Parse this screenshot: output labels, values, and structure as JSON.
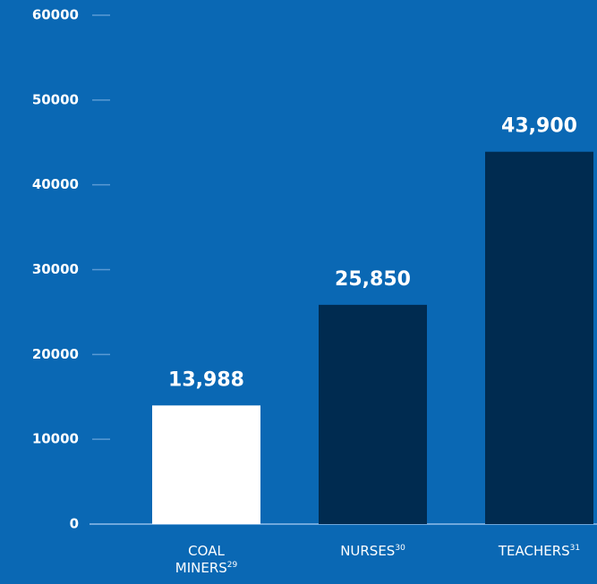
{
  "chart_data": {
    "type": "bar",
    "categories": [
      "COAL MINERS",
      "NURSES",
      "TEACHERS"
    ],
    "footnotes": [
      "29",
      "30",
      "31"
    ],
    "values": [
      13988,
      25850,
      43900
    ],
    "value_labels": [
      "13,988",
      "25,850",
      "43,900"
    ],
    "colors": [
      "#ffffff",
      "#002b50",
      "#002b50"
    ],
    "ylim": [
      0,
      60000
    ],
    "yticks": [
      0,
      10000,
      20000,
      30000,
      40000,
      50000,
      60000
    ],
    "background": "#0a68b4"
  }
}
